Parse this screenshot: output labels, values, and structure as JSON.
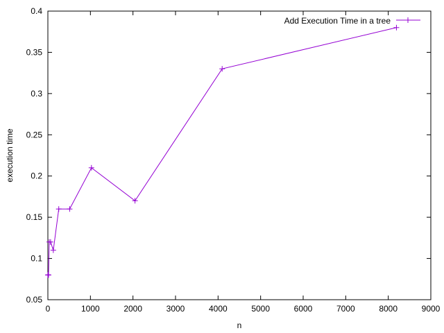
{
  "chart_data": {
    "type": "line",
    "title": "",
    "xlabel": "n",
    "ylabel": "execution time",
    "xlim": [
      0,
      9000
    ],
    "ylim": [
      0.05,
      0.4
    ],
    "x_ticks": [
      0,
      1000,
      2000,
      3000,
      4000,
      5000,
      6000,
      7000,
      8000,
      9000
    ],
    "y_ticks": [
      0.05,
      0.1,
      0.15,
      0.2,
      0.25,
      0.3,
      0.35,
      0.4
    ],
    "x_tick_labels": [
      "0",
      "1000",
      "2000",
      "3000",
      "4000",
      "5000",
      "6000",
      "7000",
      "8000",
      "9000"
    ],
    "y_tick_labels": [
      "0.05",
      "0.1",
      "0.15",
      "0.2",
      "0.25",
      "0.3",
      "0.35",
      "0.4"
    ],
    "grid": false,
    "legend_position": "top-right",
    "series": [
      {
        "name": "Add Execution Time in a tree",
        "color": "#9400d3",
        "marker": "plus",
        "x": [
          2,
          4,
          8,
          16,
          32,
          64,
          128,
          256,
          512,
          1024,
          2048,
          4096,
          8192
        ],
        "y": [
          0.08,
          0.08,
          0.08,
          0.08,
          0.12,
          0.12,
          0.11,
          0.16,
          0.16,
          0.21,
          0.17,
          0.33,
          0.38
        ]
      }
    ]
  }
}
